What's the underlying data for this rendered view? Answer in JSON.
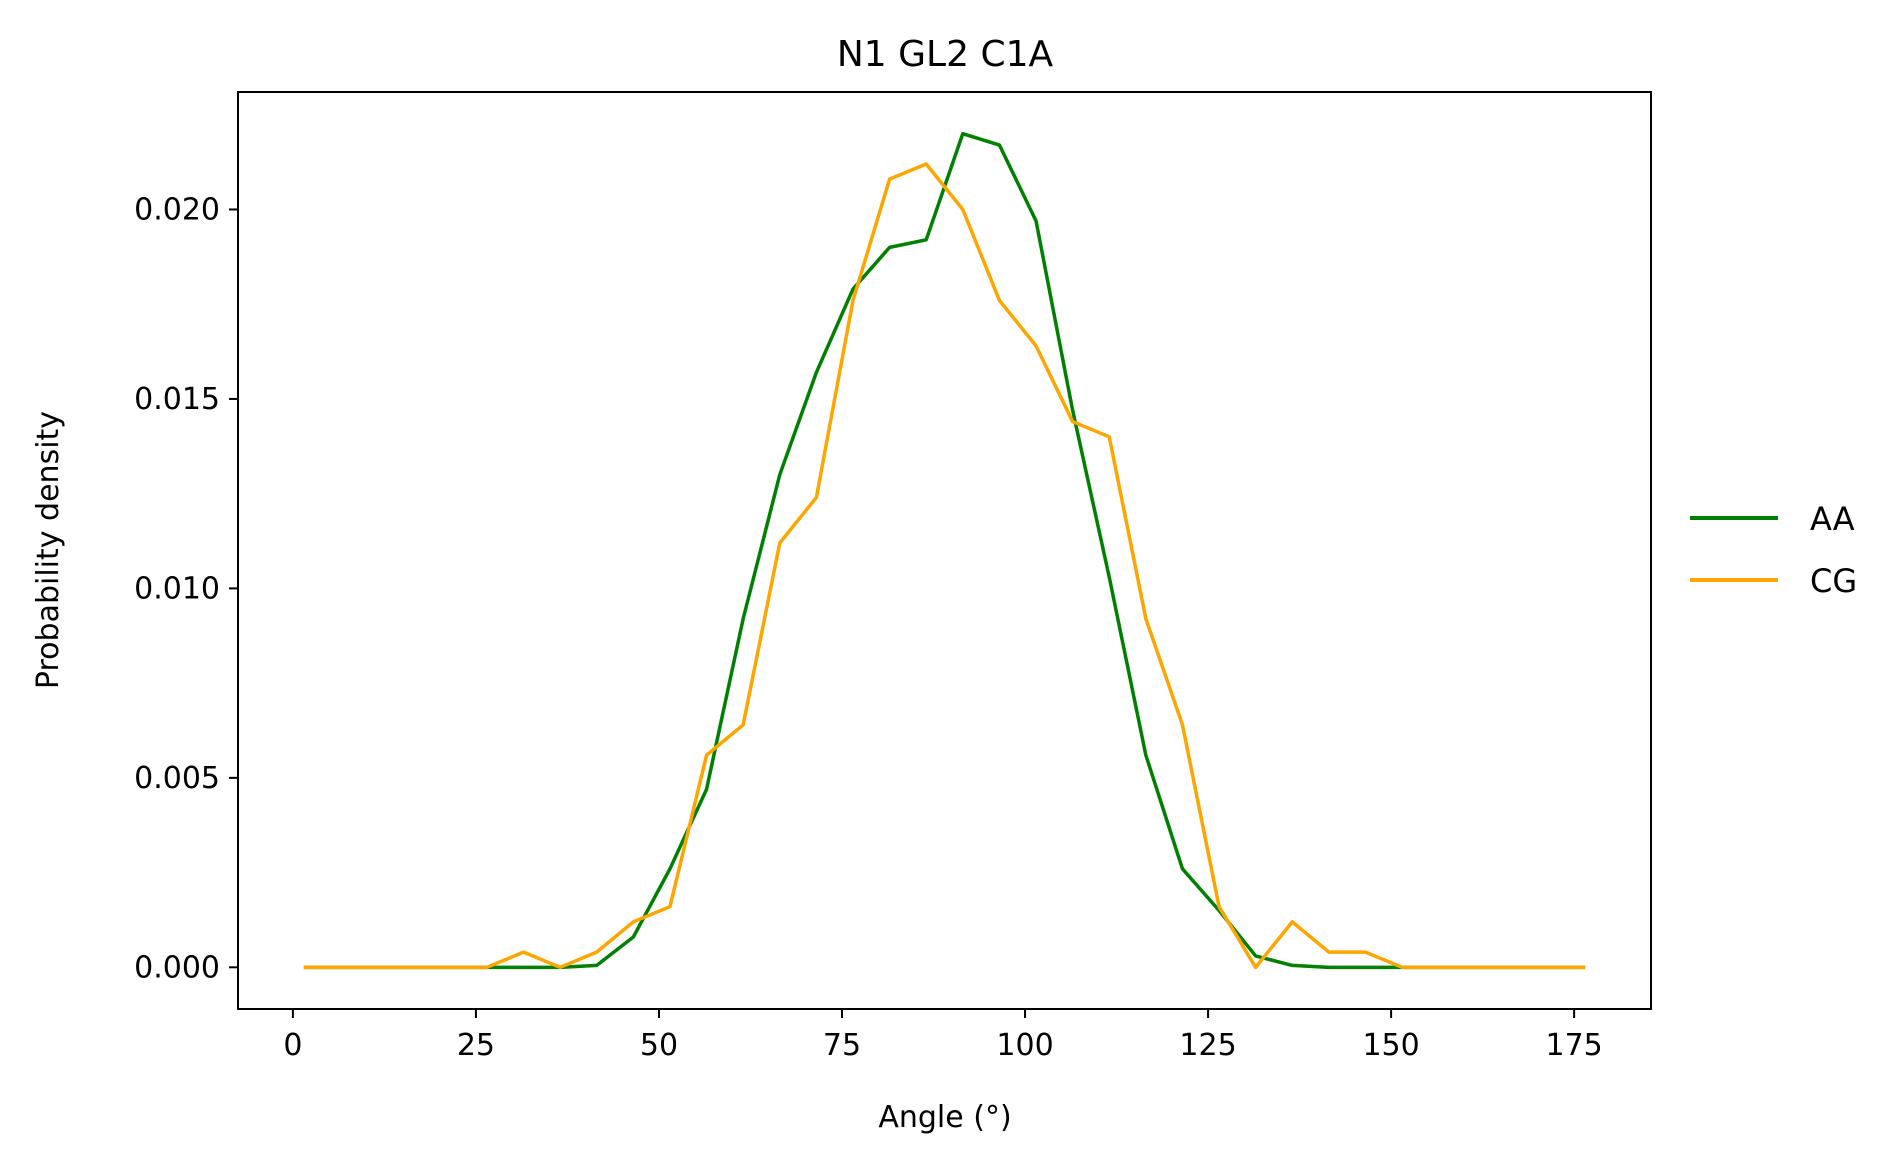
{
  "chart_data": {
    "type": "line",
    "title": "N1 GL2 C1A",
    "xlabel": "Angle (°)",
    "ylabel": "Probability density",
    "xlim": [
      -7.5,
      185.5
    ],
    "ylim": [
      -0.0011,
      0.0231
    ],
    "xticks": [
      0,
      25,
      50,
      75,
      100,
      125,
      150,
      175
    ],
    "xtick_labels": [
      "0",
      "25",
      "50",
      "75",
      "100",
      "125",
      "150",
      "175"
    ],
    "yticks": [
      0.0,
      0.005,
      0.01,
      0.015,
      0.02
    ],
    "ytick_labels": [
      "0.000",
      "0.005",
      "0.010",
      "0.015",
      "0.020"
    ],
    "grid": false,
    "legend_position": "right, outside plot",
    "x": [
      1.5,
      6.5,
      11.5,
      16.5,
      21.5,
      26.5,
      31.5,
      36.5,
      41.5,
      46.5,
      51.5,
      56.5,
      61.5,
      66.5,
      71.5,
      76.5,
      81.5,
      86.5,
      91.5,
      96.5,
      101.5,
      106.5,
      111.5,
      116.5,
      121.5,
      126.5,
      131.5,
      136.5,
      141.5,
      146.5,
      151.5,
      156.5,
      161.5,
      166.5,
      171.5,
      176.5
    ],
    "series": [
      {
        "name": "AA",
        "color": "#008000",
        "values": [
          0,
          0,
          0,
          0,
          0,
          0,
          0,
          0,
          5e-05,
          0.0008,
          0.0026,
          0.0047,
          0.0092,
          0.013,
          0.0157,
          0.0179,
          0.019,
          0.0192,
          0.022,
          0.0217,
          0.0197,
          0.0147,
          0.0103,
          0.0056,
          0.0026,
          0.0015,
          0.0003,
          5e-05,
          0,
          0,
          0,
          0,
          0,
          0,
          0,
          0
        ]
      },
      {
        "name": "CG",
        "color": "#ffa500",
        "values": [
          0,
          0,
          0,
          0,
          0,
          0,
          0.0004,
          0,
          0.0004,
          0.0012,
          0.0016,
          0.0056,
          0.0064,
          0.0112,
          0.0124,
          0.0176,
          0.0208,
          0.0212,
          0.02,
          0.0176,
          0.0164,
          0.0144,
          0.014,
          0.0092,
          0.0064,
          0.0016,
          0,
          0.0012,
          0.0004,
          0.0004,
          0,
          0,
          0,
          0,
          0,
          0
        ]
      }
    ]
  }
}
